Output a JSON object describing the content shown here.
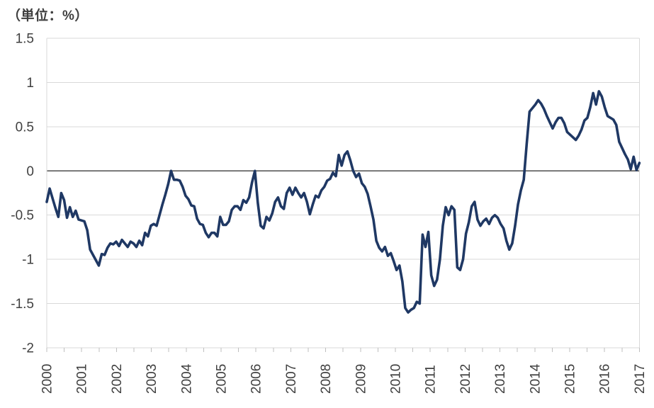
{
  "header": {
    "title": "（単位：%）"
  },
  "colors": {
    "line": "#1f3864",
    "grid": "#d9d9d9",
    "zero_line": "#4d4d4d",
    "axis": "#bfbfbf",
    "text": "#404040",
    "background": "#ffffff"
  },
  "chart_data": {
    "type": "line",
    "title": "（単位：%）",
    "frequency": "monthly",
    "x_start": "2000-01",
    "x_end": "2017-02",
    "x_tick_labels": [
      "2000",
      "2001",
      "2002",
      "2003",
      "2004",
      "2005",
      "2006",
      "2007",
      "2008",
      "2009",
      "2010",
      "2011",
      "2012",
      "2013",
      "2014",
      "2015",
      "2016",
      "2017"
    ],
    "y_ticks": [
      1.5,
      1.0,
      0.5,
      0.0,
      -0.5,
      -1.0,
      -1.5,
      -2.0
    ],
    "y_tick_labels": [
      "1.5",
      "1",
      "0.5",
      "0",
      "-0.5",
      "-1",
      "-1.5",
      "-2"
    ],
    "ylim": [
      -2.0,
      1.5
    ],
    "grid": "horizontal",
    "legend": "none",
    "minor_x_ticks_per_year": 2,
    "values": [
      -0.35,
      -0.2,
      -0.31,
      -0.42,
      -0.52,
      -0.25,
      -0.33,
      -0.53,
      -0.41,
      -0.52,
      -0.45,
      -0.55,
      -0.56,
      -0.57,
      -0.67,
      -0.89,
      -0.95,
      -1.01,
      -1.07,
      -0.94,
      -0.95,
      -0.87,
      -0.82,
      -0.83,
      -0.8,
      -0.85,
      -0.78,
      -0.82,
      -0.86,
      -0.8,
      -0.82,
      -0.86,
      -0.79,
      -0.84,
      -0.7,
      -0.74,
      -0.62,
      -0.6,
      -0.62,
      -0.5,
      -0.38,
      -0.27,
      -0.15,
      0.0,
      -0.1,
      -0.1,
      -0.11,
      -0.18,
      -0.28,
      -0.32,
      -0.39,
      -0.4,
      -0.54,
      -0.6,
      -0.61,
      -0.7,
      -0.75,
      -0.7,
      -0.7,
      -0.74,
      -0.52,
      -0.61,
      -0.61,
      -0.57,
      -0.44,
      -0.4,
      -0.4,
      -0.44,
      -0.33,
      -0.36,
      -0.3,
      -0.13,
      0.0,
      -0.36,
      -0.62,
      -0.65,
      -0.52,
      -0.56,
      -0.48,
      -0.35,
      -0.3,
      -0.4,
      -0.43,
      -0.25,
      -0.19,
      -0.27,
      -0.19,
      -0.25,
      -0.3,
      -0.25,
      -0.35,
      -0.49,
      -0.38,
      -0.28,
      -0.3,
      -0.22,
      -0.18,
      -0.11,
      -0.09,
      -0.02,
      -0.06,
      0.18,
      0.06,
      0.18,
      0.22,
      0.12,
      0.0,
      -0.07,
      -0.03,
      -0.14,
      -0.18,
      -0.26,
      -0.4,
      -0.55,
      -0.79,
      -0.87,
      -0.91,
      -0.86,
      -0.96,
      -0.93,
      -1.02,
      -1.12,
      -1.07,
      -1.25,
      -1.55,
      -1.6,
      -1.57,
      -1.55,
      -1.48,
      -1.5,
      -0.72,
      -0.86,
      -0.69,
      -1.18,
      -1.3,
      -1.23,
      -1.0,
      -0.62,
      -0.41,
      -0.5,
      -0.4,
      -0.44,
      -1.09,
      -1.12,
      -1.0,
      -0.71,
      -0.58,
      -0.4,
      -0.35,
      -0.55,
      -0.62,
      -0.57,
      -0.54,
      -0.6,
      -0.53,
      -0.5,
      -0.53,
      -0.6,
      -0.65,
      -0.79,
      -0.89,
      -0.82,
      -0.62,
      -0.38,
      -0.22,
      -0.1,
      0.3,
      0.67,
      0.71,
      0.75,
      0.8,
      0.76,
      0.7,
      0.62,
      0.55,
      0.48,
      0.55,
      0.6,
      0.6,
      0.54,
      0.44,
      0.41,
      0.38,
      0.35,
      0.4,
      0.47,
      0.57,
      0.6,
      0.72,
      0.88,
      0.75,
      0.9,
      0.84,
      0.72,
      0.62,
      0.6,
      0.58,
      0.52,
      0.33,
      0.26,
      0.19,
      0.13,
      0.02,
      0.16,
      0.01,
      0.09
    ]
  }
}
